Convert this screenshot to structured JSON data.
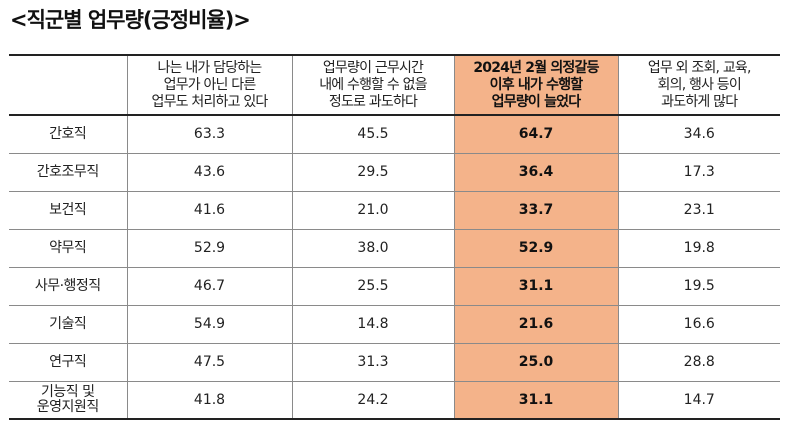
{
  "title": "<직군별 업무량(긍정비율)>",
  "colors": {
    "highlight": "#f4b38a",
    "border": "#8a8a8a",
    "rule": "#222222"
  },
  "columns": [
    "",
    "나는 내가 담당하는\n업무가 아닌 다른\n업무도 처리하고 있다",
    "업무량이 근무시간\n내에 수행할 수 없을\n정도로 과도하다",
    "2024년 2월 의정갈등\n이후 내가 수행할\n업무량이 늘었다",
    "업무 외 조회, 교육,\n회의, 행사 등이\n과도하게 많다"
  ],
  "highlight_column_index": 3,
  "rows": [
    {
      "label": "간호직",
      "values": [
        "63.3",
        "45.5",
        "64.7",
        "34.6"
      ]
    },
    {
      "label": "간호조무직",
      "values": [
        "43.6",
        "29.5",
        "36.4",
        "17.3"
      ]
    },
    {
      "label": "보건직",
      "values": [
        "41.6",
        "21.0",
        "33.7",
        "23.1"
      ]
    },
    {
      "label": "약무직",
      "values": [
        "52.9",
        "38.0",
        "52.9",
        "19.8"
      ]
    },
    {
      "label": "사무·행정직",
      "values": [
        "46.7",
        "25.5",
        "31.1",
        "19.5"
      ]
    },
    {
      "label": "기술직",
      "values": [
        "54.9",
        "14.8",
        "21.6",
        "16.6"
      ]
    },
    {
      "label": "연구직",
      "values": [
        "47.5",
        "31.3",
        "25.0",
        "28.8"
      ]
    },
    {
      "label": "기능직 및\n운영지원직",
      "values": [
        "41.8",
        "24.2",
        "31.1",
        "14.7"
      ]
    }
  ]
}
